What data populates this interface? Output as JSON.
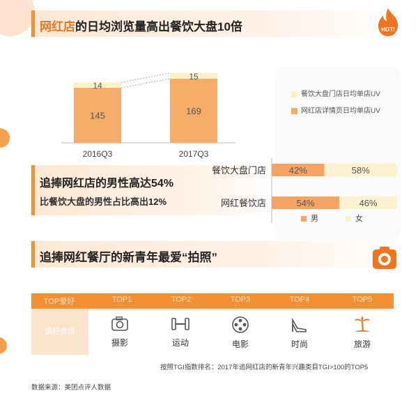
{
  "colors": {
    "accent": "#f39033",
    "bar_bottom": "#f7ad6a",
    "bar_top": "#fdf1c8",
    "male": "#f6a463",
    "female": "#fdf2cf"
  },
  "section1": {
    "title_prefix": "网红店",
    "title_rest": "的日均浏览量高出餐饮大盘10倍"
  },
  "section2": {
    "line1_text": "追捧网红店的男性高达",
    "line1_value": "54%",
    "line2_text": "比餐饮大盘的男性占比高出",
    "line2_value": "12%"
  },
  "section3": {
    "title_text": "追捧网红餐厅的新青年最爱",
    "title_quote": "“拍照”"
  },
  "table": {
    "header_label": "TOP爱好",
    "row_label": "偏好类目",
    "columns": [
      {
        "head": "TOP1",
        "name": "摄影",
        "icon": "camera-icon"
      },
      {
        "head": "TOP2",
        "name": "运动",
        "icon": "dumbbell-icon"
      },
      {
        "head": "TOP3",
        "name": "电影",
        "icon": "film-reel-icon"
      },
      {
        "head": "TOP4",
        "name": "时尚",
        "icon": "high-heel-icon"
      },
      {
        "head": "TOP5",
        "name": "旅游",
        "icon": "palm-tree-icon"
      }
    ]
  },
  "note": "按照TGI指数排名：2017年追网红店的新青年兴趣类目TGI>100的TOP5",
  "source": "数据来源：美团点评人数据",
  "chart_data": [
    {
      "type": "bar",
      "stacked": true,
      "categories": [
        "2016Q3",
        "2017Q3"
      ],
      "series": [
        {
          "name": "网红店详情页日均单店UV",
          "values": [
            145,
            169
          ]
        },
        {
          "name": "餐饮大盘门店日均单店UV",
          "values": [
            14,
            15
          ]
        }
      ],
      "data_labels": [
        [
          "145",
          "169"
        ],
        [
          "14",
          "15"
        ]
      ]
    },
    {
      "type": "bar",
      "orientation": "horizontal",
      "stacked_percent": true,
      "categories": [
        "餐饮大盘门店",
        "网红餐饮店"
      ],
      "series": [
        {
          "name": "男",
          "values": [
            42,
            54
          ]
        },
        {
          "name": "女",
          "values": [
            58,
            46
          ]
        }
      ],
      "data_labels": [
        [
          "42%",
          "54%"
        ],
        [
          "58%",
          "46%"
        ]
      ]
    }
  ]
}
